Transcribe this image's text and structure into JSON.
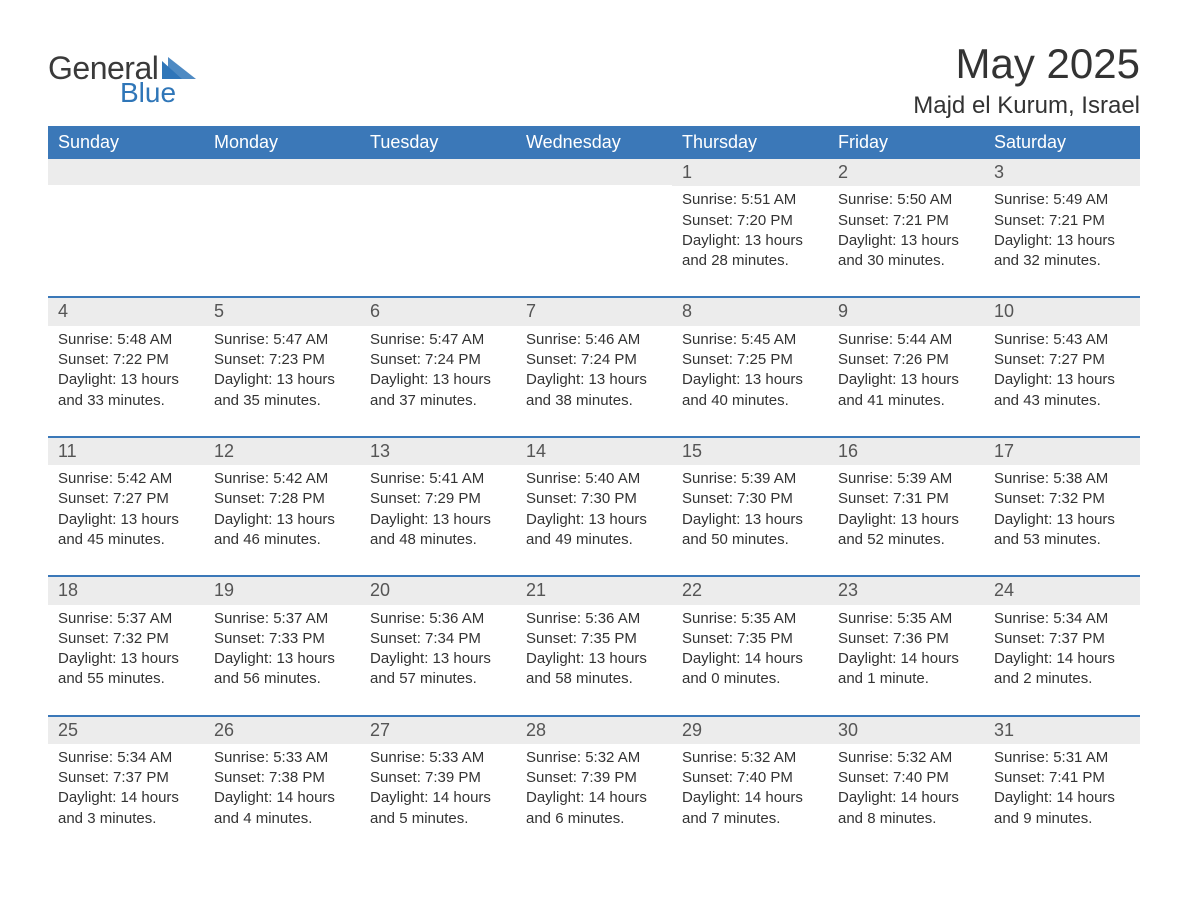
{
  "brand": {
    "word1": "General",
    "word2": "Blue",
    "word1_color": "#3a3a3a",
    "word2_color": "#2f76b8",
    "triangle_color": "#2f76b8"
  },
  "header": {
    "title": "May 2025",
    "location": "Majd el Kurum, Israel"
  },
  "style": {
    "header_bg": "#3b78b8",
    "header_fg": "#ffffff",
    "daynum_bg": "#ececec",
    "daynum_border": "#3b78b8",
    "body_bg": "#ffffff",
    "text_color": "#333333",
    "header_fontsize": 18,
    "daynum_fontsize": 18,
    "body_fontsize": 15,
    "title_fontsize": 42,
    "location_fontsize": 24
  },
  "weekday_headers": [
    "Sunday",
    "Monday",
    "Tuesday",
    "Wednesday",
    "Thursday",
    "Friday",
    "Saturday"
  ],
  "first_weekday_index": 4,
  "days": [
    {
      "n": 1,
      "sunrise": "5:51 AM",
      "sunset": "7:20 PM",
      "daylight": "13 hours and 28 minutes."
    },
    {
      "n": 2,
      "sunrise": "5:50 AM",
      "sunset": "7:21 PM",
      "daylight": "13 hours and 30 minutes."
    },
    {
      "n": 3,
      "sunrise": "5:49 AM",
      "sunset": "7:21 PM",
      "daylight": "13 hours and 32 minutes."
    },
    {
      "n": 4,
      "sunrise": "5:48 AM",
      "sunset": "7:22 PM",
      "daylight": "13 hours and 33 minutes."
    },
    {
      "n": 5,
      "sunrise": "5:47 AM",
      "sunset": "7:23 PM",
      "daylight": "13 hours and 35 minutes."
    },
    {
      "n": 6,
      "sunrise": "5:47 AM",
      "sunset": "7:24 PM",
      "daylight": "13 hours and 37 minutes."
    },
    {
      "n": 7,
      "sunrise": "5:46 AM",
      "sunset": "7:24 PM",
      "daylight": "13 hours and 38 minutes."
    },
    {
      "n": 8,
      "sunrise": "5:45 AM",
      "sunset": "7:25 PM",
      "daylight": "13 hours and 40 minutes."
    },
    {
      "n": 9,
      "sunrise": "5:44 AM",
      "sunset": "7:26 PM",
      "daylight": "13 hours and 41 minutes."
    },
    {
      "n": 10,
      "sunrise": "5:43 AM",
      "sunset": "7:27 PM",
      "daylight": "13 hours and 43 minutes."
    },
    {
      "n": 11,
      "sunrise": "5:42 AM",
      "sunset": "7:27 PM",
      "daylight": "13 hours and 45 minutes."
    },
    {
      "n": 12,
      "sunrise": "5:42 AM",
      "sunset": "7:28 PM",
      "daylight": "13 hours and 46 minutes."
    },
    {
      "n": 13,
      "sunrise": "5:41 AM",
      "sunset": "7:29 PM",
      "daylight": "13 hours and 48 minutes."
    },
    {
      "n": 14,
      "sunrise": "5:40 AM",
      "sunset": "7:30 PM",
      "daylight": "13 hours and 49 minutes."
    },
    {
      "n": 15,
      "sunrise": "5:39 AM",
      "sunset": "7:30 PM",
      "daylight": "13 hours and 50 minutes."
    },
    {
      "n": 16,
      "sunrise": "5:39 AM",
      "sunset": "7:31 PM",
      "daylight": "13 hours and 52 minutes."
    },
    {
      "n": 17,
      "sunrise": "5:38 AM",
      "sunset": "7:32 PM",
      "daylight": "13 hours and 53 minutes."
    },
    {
      "n": 18,
      "sunrise": "5:37 AM",
      "sunset": "7:32 PM",
      "daylight": "13 hours and 55 minutes."
    },
    {
      "n": 19,
      "sunrise": "5:37 AM",
      "sunset": "7:33 PM",
      "daylight": "13 hours and 56 minutes."
    },
    {
      "n": 20,
      "sunrise": "5:36 AM",
      "sunset": "7:34 PM",
      "daylight": "13 hours and 57 minutes."
    },
    {
      "n": 21,
      "sunrise": "5:36 AM",
      "sunset": "7:35 PM",
      "daylight": "13 hours and 58 minutes."
    },
    {
      "n": 22,
      "sunrise": "5:35 AM",
      "sunset": "7:35 PM",
      "daylight": "14 hours and 0 minutes."
    },
    {
      "n": 23,
      "sunrise": "5:35 AM",
      "sunset": "7:36 PM",
      "daylight": "14 hours and 1 minute."
    },
    {
      "n": 24,
      "sunrise": "5:34 AM",
      "sunset": "7:37 PM",
      "daylight": "14 hours and 2 minutes."
    },
    {
      "n": 25,
      "sunrise": "5:34 AM",
      "sunset": "7:37 PM",
      "daylight": "14 hours and 3 minutes."
    },
    {
      "n": 26,
      "sunrise": "5:33 AM",
      "sunset": "7:38 PM",
      "daylight": "14 hours and 4 minutes."
    },
    {
      "n": 27,
      "sunrise": "5:33 AM",
      "sunset": "7:39 PM",
      "daylight": "14 hours and 5 minutes."
    },
    {
      "n": 28,
      "sunrise": "5:32 AM",
      "sunset": "7:39 PM",
      "daylight": "14 hours and 6 minutes."
    },
    {
      "n": 29,
      "sunrise": "5:32 AM",
      "sunset": "7:40 PM",
      "daylight": "14 hours and 7 minutes."
    },
    {
      "n": 30,
      "sunrise": "5:32 AM",
      "sunset": "7:40 PM",
      "daylight": "14 hours and 8 minutes."
    },
    {
      "n": 31,
      "sunrise": "5:31 AM",
      "sunset": "7:41 PM",
      "daylight": "14 hours and 9 minutes."
    }
  ],
  "labels": {
    "sunrise": "Sunrise:",
    "sunset": "Sunset:",
    "daylight": "Daylight:"
  }
}
